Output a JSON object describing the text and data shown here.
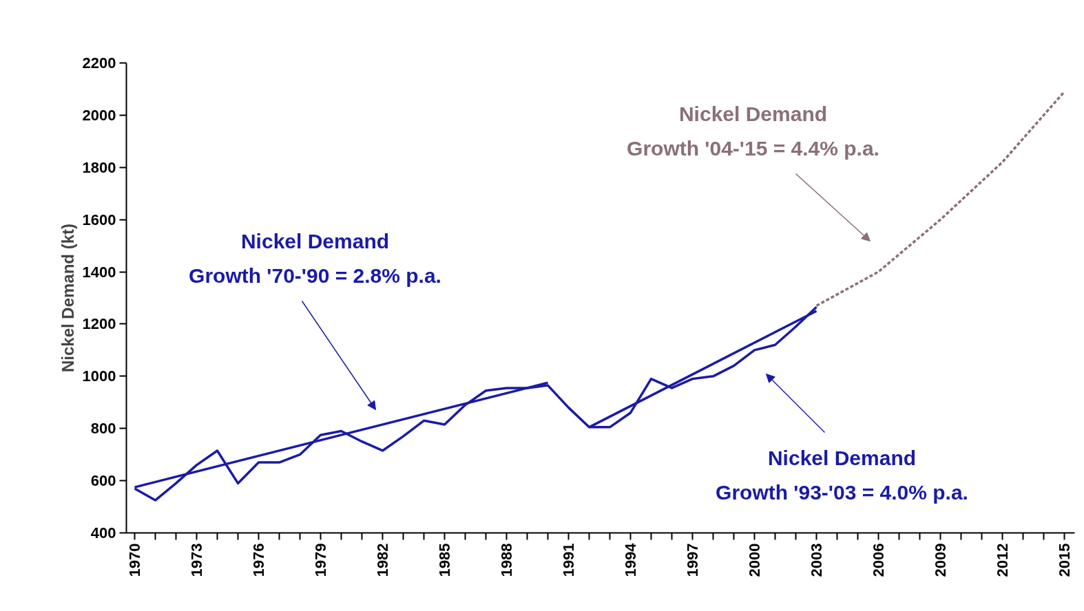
{
  "chart_data": {
    "type": "line",
    "ylabel": "Nickel Demand (kt)",
    "x": [
      1970,
      1971,
      1972,
      1973,
      1974,
      1975,
      1976,
      1977,
      1978,
      1979,
      1980,
      1981,
      1982,
      1983,
      1984,
      1985,
      1986,
      1987,
      1988,
      1989,
      1990,
      1991,
      1992,
      1993,
      1994,
      1995,
      1996,
      1997,
      1998,
      1999,
      2000,
      2001,
      2002,
      2003
    ],
    "series": [
      {
        "color": "#1a1aa8",
        "line_style": "solid",
        "values": [
          570,
          525,
          590,
          660,
          715,
          590,
          670,
          670,
          700,
          775,
          790,
          750,
          715,
          770,
          830,
          815,
          890,
          945,
          955,
          955,
          965,
          880,
          805,
          805,
          860,
          990,
          955,
          990,
          1000,
          1040,
          1100,
          1120,
          1190,
          1265
        ]
      },
      {
        "color": "#1a1aa8",
        "line_style": "solid",
        "x": [
          1970,
          1990
        ],
        "values": [
          575,
          975
        ]
      },
      {
        "color": "#1a1aa8",
        "line_style": "solid",
        "x": [
          1992,
          2003
        ],
        "values": [
          805,
          1250
        ]
      },
      {
        "color": "#8b6f7b",
        "line_style": "dashed",
        "x": [
          2003,
          2006,
          2009,
          2012,
          2015
        ],
        "values": [
          1270,
          1400,
          1600,
          1820,
          2090
        ]
      }
    ],
    "annotations": [
      "Nickel Demand\nGrowth '70-'90 = 2.8% p.a.",
      "Nickel Demand\nGrowth '93-'03 = 4.0% p.a.",
      "Nickel Demand\nGrowth '04-'15 = 4.4% p.a."
    ],
    "xlim": [
      1969.6,
      2015.5
    ],
    "ylim": [
      400,
      2200
    ],
    "yticks": [
      400,
      600,
      800,
      1000,
      1200,
      1400,
      1600,
      1800,
      2000,
      2200
    ],
    "xticks": [
      1970,
      {
        "value": 1971,
        "label": null
      },
      {
        "value": 1972,
        "label": null
      },
      1973,
      {
        "value": 1974,
        "label": null
      },
      {
        "value": 1975,
        "label": null
      },
      1976,
      {
        "value": 1977,
        "label": null
      },
      {
        "value": 1978,
        "label": null
      },
      1979,
      {
        "value": 1980,
        "label": null
      },
      {
        "value": 1981,
        "label": null
      },
      1982,
      {
        "value": 1983,
        "label": null
      },
      {
        "value": 1984,
        "label": null
      },
      1985,
      {
        "value": 1986,
        "label": null
      },
      {
        "value": 1987,
        "label": null
      },
      1988,
      {
        "value": 1989,
        "label": null
      },
      {
        "value": 1990,
        "label": null
      },
      1991,
      {
        "value": 1992,
        "label": null
      },
      {
        "value": 1993,
        "label": null
      },
      1994,
      {
        "value": 1995,
        "label": null
      },
      {
        "value": 1996,
        "label": null
      },
      1997,
      {
        "value": 1998,
        "label": null
      },
      {
        "value": 1999,
        "label": null
      },
      2000,
      {
        "value": 2001,
        "label": null
      },
      {
        "value": 2002,
        "label": null
      },
      2003,
      {
        "value": 2004,
        "label": null
      },
      {
        "value": 2005,
        "label": null
      },
      2006,
      {
        "value": 2007,
        "label": null
      },
      {
        "value": 2008,
        "label": null
      },
      2009,
      {
        "value": 2010,
        "label": null
      },
      {
        "value": 2011,
        "label": null
      },
      2012,
      {
        "value": 2013,
        "label": null
      },
      {
        "value": 2014,
        "label": null
      },
      2015
    ],
    "grid": false
  }
}
